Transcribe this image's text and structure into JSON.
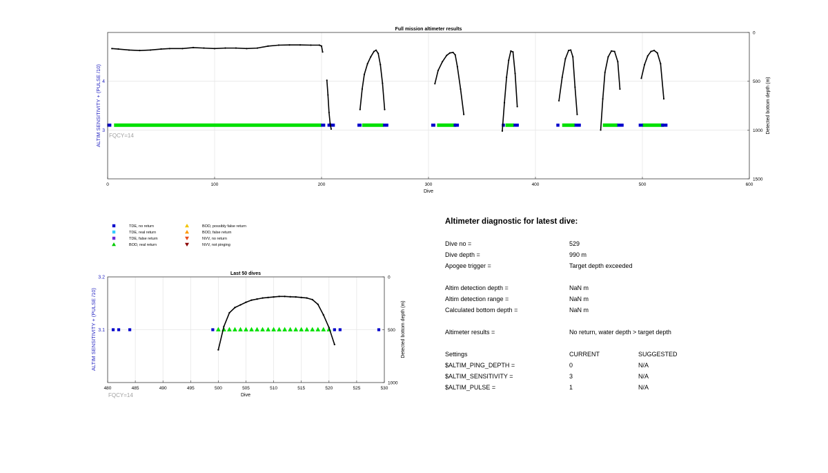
{
  "chart_data": [
    {
      "type": "scatter",
      "title": "Full mission altimeter results",
      "xlabel": "Dive",
      "ylabel": "ALTIM SENSITIVITY + (PULSE /10)",
      "y2label": "Detected bottom depth (m)",
      "xlim": [
        0,
        600
      ],
      "ylim": [
        2,
        5
      ],
      "y2lim": [
        1500,
        0
      ],
      "xticks": [
        "0",
        "100",
        "200",
        "300",
        "400",
        "500",
        "600"
      ],
      "yticks": [
        "3",
        "4"
      ],
      "y2ticks": [
        "0",
        "500",
        "1000",
        "1500"
      ],
      "annotation": "FQCY=14",
      "grid": true,
      "series": [
        {
          "name": "Detected bottom depth",
          "axis": "right",
          "color": "#000000",
          "segments": [
            {
              "x": [
                4,
                10,
                20,
                30,
                40,
                50,
                58,
                70,
                80,
                90,
                100,
                110,
                120,
                130,
                140,
                150,
                160,
                170,
                180,
                190,
                198,
                200,
                201
              ],
              "y": [
                165,
                170,
                180,
                185,
                180,
                170,
                165,
                165,
                155,
                160,
                165,
                160,
                160,
                165,
                160,
                140,
                130,
                128,
                128,
                130,
                130,
                140,
                200
              ]
            },
            {
              "x": [
                205,
                206,
                207,
                208,
                209
              ],
              "y": [
                490,
                640,
                820,
                930,
                990
              ]
            },
            {
              "x": [
                236,
                238,
                240,
                243,
                246,
                249,
                251,
                253,
                255,
                257,
                259
              ],
              "y": [
                790,
                580,
                430,
                320,
                250,
                195,
                182,
                215,
                330,
                520,
                790
              ]
            },
            {
              "x": [
                306,
                309,
                313,
                317,
                320,
                323,
                325,
                327,
                330,
                333
              ],
              "y": [
                525,
                390,
                300,
                235,
                210,
                205,
                230,
                350,
                580,
                840
              ]
            },
            {
              "x": [
                369,
                371,
                373,
                375,
                377,
                379,
                381,
                383
              ],
              "y": [
                1010,
                720,
                460,
                285,
                190,
                200,
                420,
                760
              ]
            },
            {
              "x": [
                422,
                425,
                428,
                431,
                433,
                435,
                437,
                439
              ],
              "y": [
                700,
                460,
                270,
                185,
                180,
                250,
                560,
                840
              ]
            },
            {
              "x": [
                461,
                463,
                465,
                468,
                471,
                474,
                477,
                479
              ],
              "y": [
                1000,
                680,
                410,
                250,
                190,
                195,
                300,
                580
              ]
            },
            {
              "x": [
                499,
                502,
                505,
                508,
                511,
                514,
                517,
                520
              ],
              "y": [
                470,
                330,
                240,
                195,
                185,
                210,
                320,
                680
              ]
            }
          ]
        },
        {
          "name": "BOD, real return",
          "axis": "left",
          "color": "#00e000",
          "ranges": [
            [
              6,
              200
            ],
            [
              238,
              258
            ],
            [
              308,
              326
            ],
            [
              372,
              380
            ],
            [
              425,
              437
            ],
            [
              463,
              477
            ],
            [
              500,
              520
            ]
          ],
          "y": 3.1
        },
        {
          "name": "TDE, no return",
          "axis": "left",
          "color": "#0000cc",
          "x": [
            1,
            2,
            201,
            202,
            207,
            208,
            209,
            210,
            211,
            235,
            236,
            259,
            260,
            261,
            304,
            305,
            325,
            326,
            327,
            370,
            381,
            382,
            383,
            421,
            438,
            439,
            440,
            441,
            478,
            479,
            480,
            481,
            498,
            499,
            519,
            520,
            521,
            522
          ],
          "y": 3.1
        }
      ]
    },
    {
      "type": "scatter",
      "title": "Last 50 dives",
      "xlabel": "Dive",
      "ylabel": "ALTIM SENSITIVITY + (PULSE /10)",
      "y2label": "Detected bottom depth (m)",
      "xlim": [
        480,
        530
      ],
      "ylim": [
        3.0,
        3.2
      ],
      "y2lim": [
        1000,
        0
      ],
      "xticks": [
        "480",
        "485",
        "490",
        "495",
        "500",
        "505",
        "510",
        "515",
        "520",
        "525",
        "530"
      ],
      "yticks": [
        "3.1",
        "3.2"
      ],
      "y2ticks": [
        "0",
        "500",
        "1000"
      ],
      "annotation": "FQCY=14",
      "grid": true,
      "series": [
        {
          "name": "Detected bottom depth",
          "axis": "right",
          "color": "#000000",
          "x": [
            500,
            501,
            502,
            503,
            504,
            505,
            506,
            507,
            508,
            509,
            510,
            511,
            512,
            513,
            514,
            515,
            516,
            517,
            518,
            519,
            520,
            521
          ],
          "y": [
            690,
            470,
            340,
            290,
            265,
            240,
            220,
            210,
            200,
            195,
            190,
            185,
            185,
            188,
            190,
            195,
            200,
            215,
            260,
            360,
            480,
            640
          ]
        },
        {
          "name": "BOD, real return",
          "axis": "left",
          "color": "#00e000",
          "x": [
            500,
            501,
            502,
            503,
            504,
            505,
            506,
            507,
            508,
            509,
            510,
            511,
            512,
            513,
            514,
            515,
            516,
            517,
            518,
            519,
            520
          ],
          "y": 3.1
        },
        {
          "name": "TDE, no return",
          "axis": "left",
          "color": "#0000cc",
          "x": [
            481,
            482,
            484,
            499,
            521,
            522,
            529
          ],
          "y": 3.1
        }
      ]
    }
  ],
  "legend": [
    {
      "label": "TDE, no return",
      "marker": "square",
      "color": "#0000cc"
    },
    {
      "label": "TDE, real return",
      "marker": "square",
      "color": "#33ccff"
    },
    {
      "label": "TDE, false return",
      "marker": "square",
      "color": "#6a2bd9"
    },
    {
      "label": "BOD, real return",
      "marker": "triangle-up",
      "color": "#00cc00"
    },
    {
      "label": "BOD, possibly false return",
      "marker": "triangle-up",
      "color": "#f2c400"
    },
    {
      "label": "BOD, false return",
      "marker": "triangle-up",
      "color": "#ff9900"
    },
    {
      "label": "NVV, no return",
      "marker": "triangle-down",
      "color": "#e84a1a"
    },
    {
      "label": "NVV, not pinging",
      "marker": "triangle-down",
      "color": "#8b0000"
    }
  ],
  "diagnostic": {
    "title": "Altimeter diagnostic for latest dive:",
    "dive_no_label": "Dive no =",
    "dive_no": "529",
    "dive_depth_label": "Dive depth =",
    "dive_depth": "990 m",
    "apogee_label": "Apogee trigger =",
    "apogee": "Target depth exceeded",
    "det_depth_label": "Altim detection depth =",
    "det_depth": "NaN m",
    "det_range_label": "Altim detection range =",
    "det_range": "NaN m",
    "calc_bottom_label": "Calculated bottom depth =",
    "calc_bottom": "NaN m",
    "results_label": "Altimeter results =",
    "results": "No return, water depth > target depth",
    "settings_label": "Settings",
    "current_label": "CURRENT",
    "suggested_label": "SUGGESTED",
    "ping_depth_label": "$ALTIM_PING_DEPTH =",
    "ping_depth_current": "0",
    "ping_depth_suggested": "N/A",
    "sensitivity_label": "$ALTIM_SENSITIVITY =",
    "sensitivity_current": "3",
    "sensitivity_suggested": "N/A",
    "pulse_label": "$ALTIM_PULSE =",
    "pulse_current": "1",
    "pulse_suggested": "N/A"
  },
  "colors": {
    "axis_label": "#1f1fbf",
    "annotation": "#a0a0a0",
    "grid": "#e6e6e6"
  }
}
